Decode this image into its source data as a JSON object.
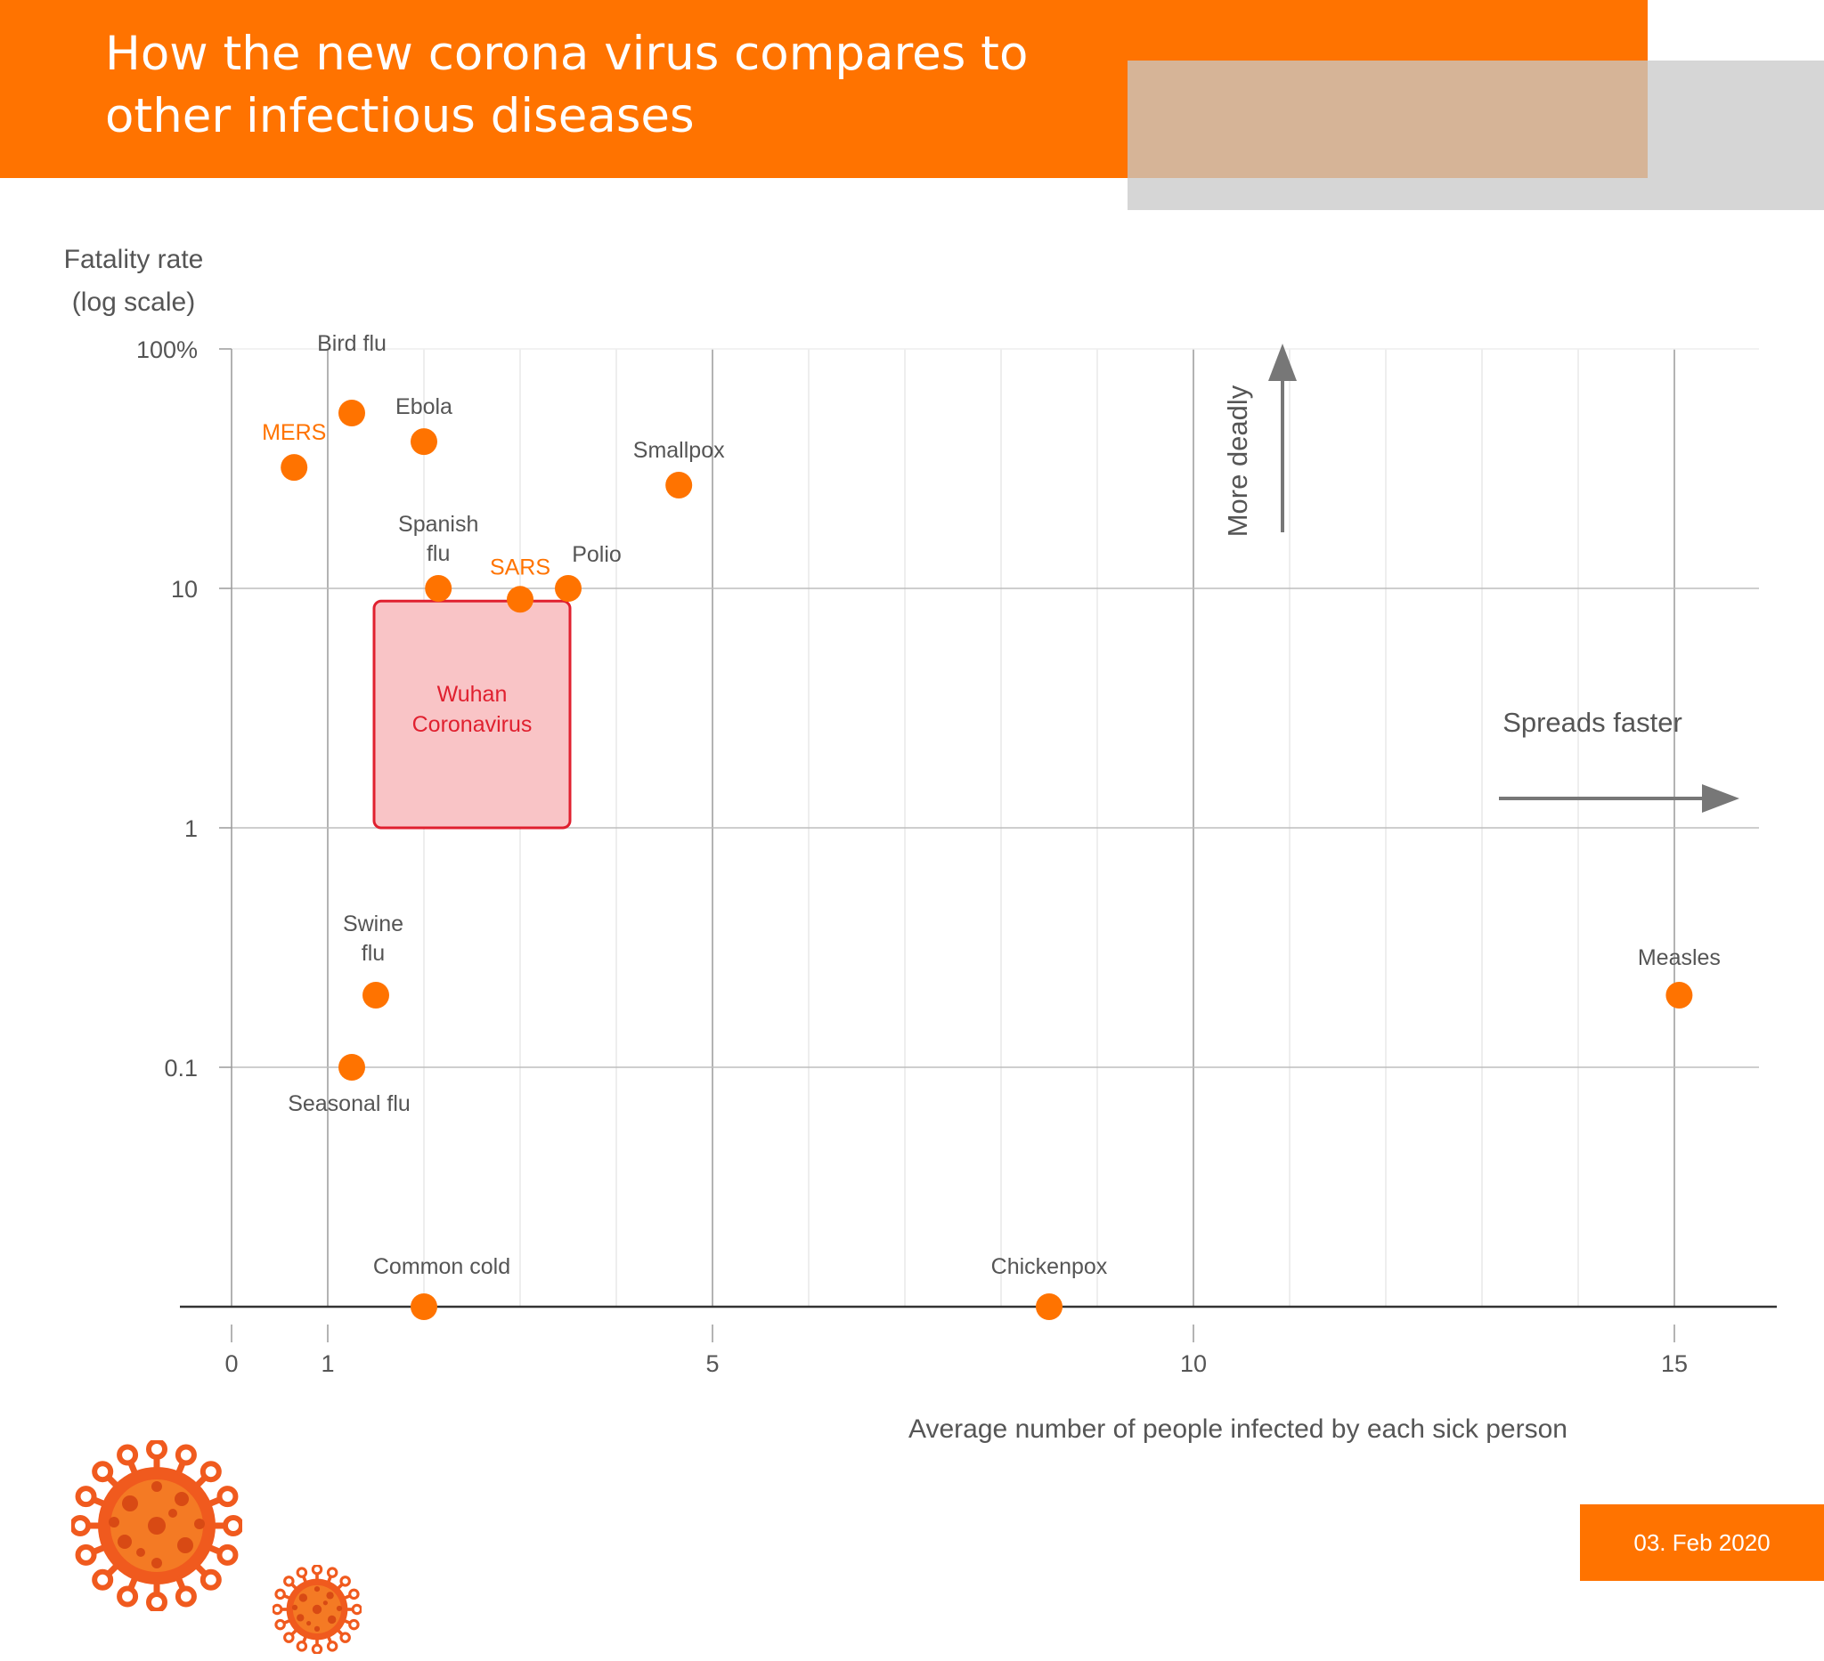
{
  "header": {
    "title": "How the new corona virus compares to other infectious diseases"
  },
  "date_label": "03. Feb 2020",
  "colors": {
    "accent": "#ff7300",
    "highlight_box_fill": "#f9c4c6",
    "highlight_box_stroke": "#e0202f",
    "highlight_text": "#e0202f",
    "text": "#555555"
  },
  "chart_data": {
    "type": "scatter",
    "title": "",
    "ylabel": "Fatality rate (log scale)",
    "xlabel": "Average number of people infected by each sick person",
    "x_ticks": [
      "0",
      "1",
      "5",
      "10",
      "15"
    ],
    "y_ticks": [
      "100%",
      "10",
      "1",
      "0.1"
    ],
    "xlim": [
      0,
      16
    ],
    "ylim": [
      0.01,
      100
    ],
    "y_scale": "log",
    "grid": true,
    "points": [
      {
        "name": "Bird flu",
        "x": 1.25,
        "y": 54,
        "label_color": "#555555"
      },
      {
        "name": "MERS",
        "x": 0.65,
        "y": 32,
        "label_color": "#ff7300"
      },
      {
        "name": "Ebola",
        "x": 2.0,
        "y": 41,
        "label_color": "#555555"
      },
      {
        "name": "Smallpox",
        "x": 4.65,
        "y": 27,
        "label_color": "#555555"
      },
      {
        "name": "Spanish flu",
        "x": 2.15,
        "y": 10,
        "label_color": "#555555"
      },
      {
        "name": "SARS",
        "x": 3.0,
        "y": 9,
        "label_color": "#ff7300"
      },
      {
        "name": "Polio",
        "x": 3.5,
        "y": 10,
        "label_color": "#555555"
      },
      {
        "name": "Swine flu",
        "x": 1.5,
        "y": 0.2,
        "label_color": "#555555"
      },
      {
        "name": "Seasonal flu",
        "x": 1.25,
        "y": 0.1,
        "label_color": "#555555"
      },
      {
        "name": "Measles",
        "x": 15.05,
        "y": 0.2,
        "label_color": "#555555"
      },
      {
        "name": "Common cold",
        "x": 2.0,
        "y": 0.01,
        "label_color": "#555555"
      },
      {
        "name": "Chickenpox",
        "x": 8.5,
        "y": 0.01,
        "label_color": "#555555"
      }
    ],
    "highlight_region": {
      "label": "Wuhan Coronavirus",
      "x_range": [
        1.5,
        3.5
      ],
      "y_range": [
        1,
        9
      ]
    },
    "annotations": {
      "more_deadly": "More deadly",
      "spreads_faster": "Spreads faster"
    }
  }
}
